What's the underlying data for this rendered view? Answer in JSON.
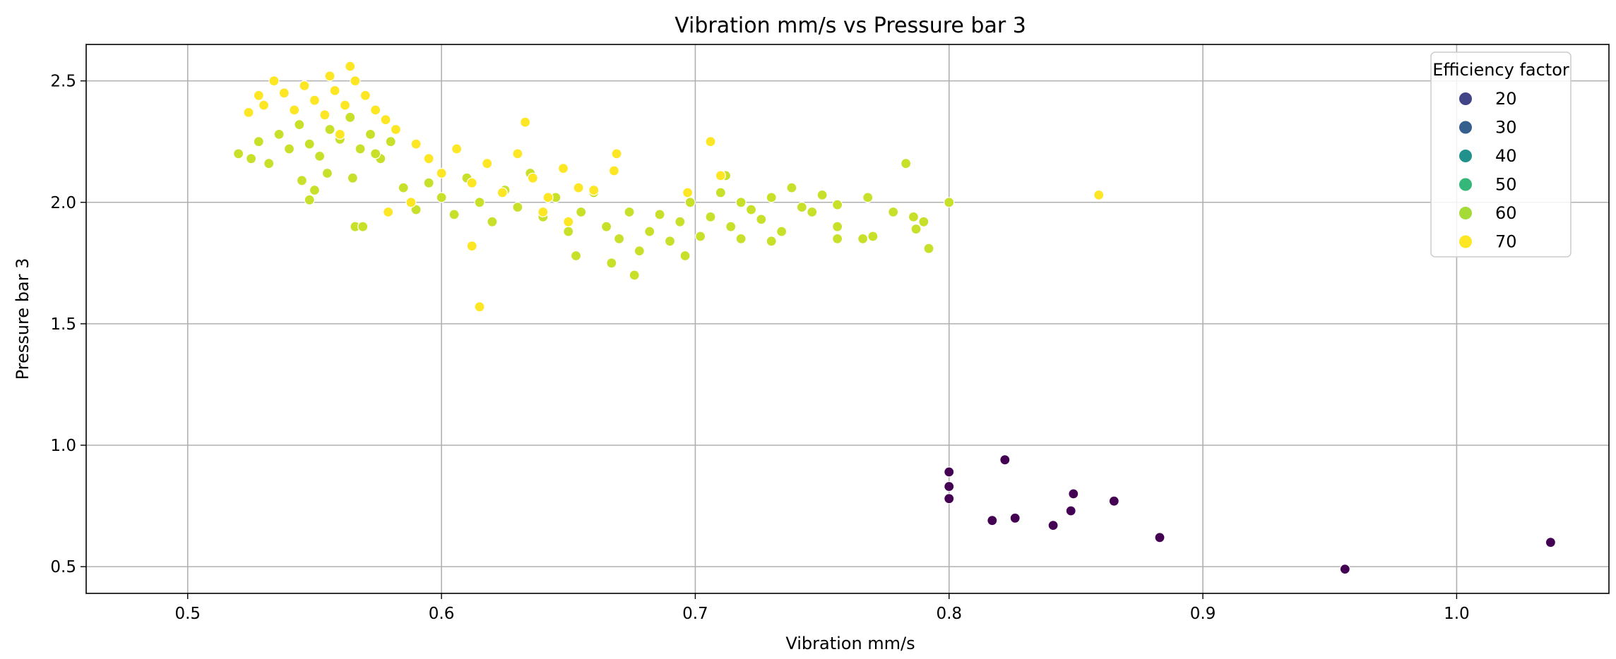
{
  "chart_data": {
    "type": "scatter",
    "title": "Vibration mm/s vs Pressure bar 3",
    "xlabel": "Vibration mm/s",
    "ylabel": "Pressure bar 3",
    "xlim": [
      0.46,
      1.06
    ],
    "ylim": [
      0.39,
      2.65
    ],
    "x_ticks": [
      0.5,
      0.6,
      0.7,
      0.8,
      0.9,
      1.0
    ],
    "x_tick_labels": [
      "0.5",
      "0.6",
      "0.7",
      "0.8",
      "0.9",
      "1.0"
    ],
    "y_ticks": [
      0.5,
      1.0,
      1.5,
      2.0,
      2.5
    ],
    "y_tick_labels": [
      "0.5",
      "1.0",
      "1.5",
      "2.0",
      "2.5"
    ],
    "grid": true,
    "legend": {
      "title": "Efficiency factor",
      "placement": "top-right",
      "entries": [
        {
          "label": "20",
          "color": "#414487"
        },
        {
          "label": "30",
          "color": "#355f8d"
        },
        {
          "label": "40",
          "color": "#21918c"
        },
        {
          "label": "50",
          "color": "#35b779"
        },
        {
          "label": "60",
          "color": "#a5db36"
        },
        {
          "label": "70",
          "color": "#fde725"
        }
      ]
    },
    "series": [
      {
        "efficiency": 15,
        "color": "#440154",
        "points": [
          [
            0.8,
            0.89
          ],
          [
            0.8,
            0.83
          ],
          [
            0.8,
            0.78
          ],
          [
            0.822,
            0.94
          ],
          [
            0.817,
            0.69
          ],
          [
            0.826,
            0.7
          ],
          [
            0.841,
            0.67
          ],
          [
            0.849,
            0.8
          ],
          [
            0.848,
            0.73
          ],
          [
            0.865,
            0.77
          ],
          [
            0.883,
            0.62
          ],
          [
            0.956,
            0.49
          ],
          [
            1.037,
            0.6
          ]
        ]
      },
      {
        "efficiency": 65,
        "color": "#c8e02a",
        "points": [
          [
            0.52,
            2.2
          ],
          [
            0.525,
            2.18
          ],
          [
            0.528,
            2.25
          ],
          [
            0.532,
            2.16
          ],
          [
            0.536,
            2.28
          ],
          [
            0.54,
            2.22
          ],
          [
            0.544,
            2.32
          ],
          [
            0.548,
            2.24
          ],
          [
            0.552,
            2.19
          ],
          [
            0.556,
            2.3
          ],
          [
            0.56,
            2.26
          ],
          [
            0.564,
            2.35
          ],
          [
            0.568,
            2.22
          ],
          [
            0.572,
            2.28
          ],
          [
            0.576,
            2.18
          ],
          [
            0.58,
            2.25
          ],
          [
            0.545,
            2.09
          ],
          [
            0.55,
            2.05
          ],
          [
            0.555,
            2.12
          ],
          [
            0.548,
            2.01
          ],
          [
            0.566,
            1.9
          ],
          [
            0.569,
            1.9
          ],
          [
            0.565,
            2.1
          ],
          [
            0.574,
            2.2
          ],
          [
            0.585,
            2.06
          ],
          [
            0.59,
            1.97
          ],
          [
            0.595,
            2.08
          ],
          [
            0.6,
            2.02
          ],
          [
            0.605,
            1.95
          ],
          [
            0.61,
            2.1
          ],
          [
            0.615,
            2.0
          ],
          [
            0.62,
            1.92
          ],
          [
            0.625,
            2.05
          ],
          [
            0.63,
            1.98
          ],
          [
            0.635,
            2.12
          ],
          [
            0.64,
            1.94
          ],
          [
            0.645,
            2.02
          ],
          [
            0.65,
            1.88
          ],
          [
            0.655,
            1.96
          ],
          [
            0.66,
            2.04
          ],
          [
            0.653,
            1.78
          ],
          [
            0.665,
            1.9
          ],
          [
            0.67,
            1.85
          ],
          [
            0.674,
            1.96
          ],
          [
            0.678,
            1.8
          ],
          [
            0.682,
            1.88
          ],
          [
            0.686,
            1.95
          ],
          [
            0.69,
            1.84
          ],
          [
            0.694,
            1.92
          ],
          [
            0.698,
            2.0
          ],
          [
            0.702,
            1.86
          ],
          [
            0.706,
            1.94
          ],
          [
            0.71,
            2.04
          ],
          [
            0.714,
            1.9
          ],
          [
            0.718,
            1.85
          ],
          [
            0.722,
            1.97
          ],
          [
            0.726,
            1.93
          ],
          [
            0.73,
            2.02
          ],
          [
            0.734,
            1.88
          ],
          [
            0.738,
            2.06
          ],
          [
            0.742,
            1.98
          ],
          [
            0.746,
            1.96
          ],
          [
            0.75,
            2.03
          ],
          [
            0.756,
            1.99
          ],
          [
            0.756,
            1.9
          ],
          [
            0.756,
            1.85
          ],
          [
            0.768,
            2.02
          ],
          [
            0.77,
            1.86
          ],
          [
            0.766,
            1.85
          ],
          [
            0.778,
            1.96
          ],
          [
            0.783,
            2.16
          ],
          [
            0.786,
            1.94
          ],
          [
            0.79,
            1.92
          ],
          [
            0.792,
            1.81
          ],
          [
            0.787,
            1.89
          ],
          [
            0.8,
            2.0
          ],
          [
            0.676,
            1.7
          ],
          [
            0.667,
            1.75
          ],
          [
            0.712,
            2.11
          ],
          [
            0.696,
            1.78
          ],
          [
            0.718,
            2.0
          ],
          [
            0.73,
            1.84
          ]
        ]
      },
      {
        "efficiency": 70,
        "color": "#fde725",
        "points": [
          [
            0.53,
            2.4
          ],
          [
            0.534,
            2.5
          ],
          [
            0.538,
            2.45
          ],
          [
            0.542,
            2.38
          ],
          [
            0.546,
            2.48
          ],
          [
            0.55,
            2.42
          ],
          [
            0.554,
            2.36
          ],
          [
            0.558,
            2.46
          ],
          [
            0.562,
            2.4
          ],
          [
            0.564,
            2.56
          ],
          [
            0.566,
            2.5
          ],
          [
            0.57,
            2.44
          ],
          [
            0.574,
            2.38
          ],
          [
            0.578,
            2.34
          ],
          [
            0.524,
            2.37
          ],
          [
            0.528,
            2.44
          ],
          [
            0.556,
            2.52
          ],
          [
            0.56,
            2.28
          ],
          [
            0.582,
            2.3
          ],
          [
            0.59,
            2.24
          ],
          [
            0.595,
            2.18
          ],
          [
            0.6,
            2.12
          ],
          [
            0.606,
            2.22
          ],
          [
            0.612,
            2.08
          ],
          [
            0.618,
            2.16
          ],
          [
            0.624,
            2.04
          ],
          [
            0.63,
            2.2
          ],
          [
            0.633,
            2.33
          ],
          [
            0.636,
            2.1
          ],
          [
            0.642,
            2.02
          ],
          [
            0.648,
            2.14
          ],
          [
            0.654,
            2.06
          ],
          [
            0.66,
            2.05
          ],
          [
            0.612,
            1.82
          ],
          [
            0.615,
            1.57
          ],
          [
            0.668,
            2.13
          ],
          [
            0.669,
            2.2
          ],
          [
            0.706,
            2.25
          ],
          [
            0.697,
            2.04
          ],
          [
            0.71,
            2.11
          ],
          [
            0.859,
            2.03
          ],
          [
            0.579,
            1.96
          ],
          [
            0.588,
            2.0
          ],
          [
            0.64,
            1.96
          ],
          [
            0.65,
            1.92
          ]
        ]
      }
    ]
  }
}
